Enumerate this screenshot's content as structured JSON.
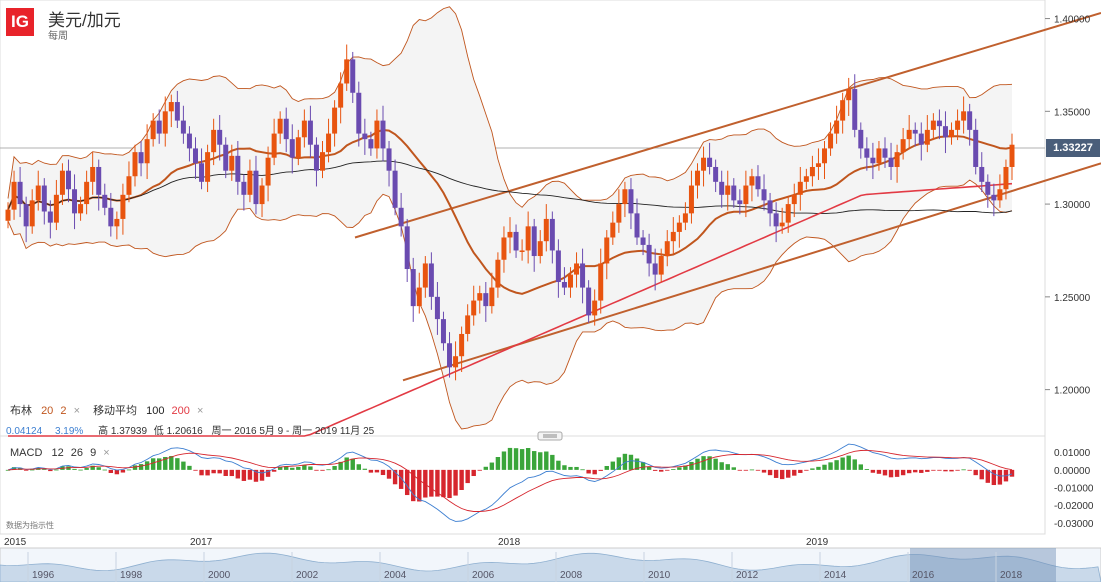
{
  "header": {
    "logo": "IG",
    "title": "美元/加元",
    "subtitle": "每周"
  },
  "price_axis": {
    "ticks": [
      "1.40000",
      "1.35000",
      "1.30000",
      "1.25000",
      "1.20000"
    ],
    "current": "1.33227"
  },
  "indicators": {
    "boll_label": "布林",
    "boll_p1": "20",
    "boll_p2": "2",
    "close1": "×",
    "ma_label": "移动平均",
    "ma_p1": "100",
    "ma_p2": "200",
    "close2": "×",
    "change": "0.04124",
    "change_pct": "3.19%",
    "high_label": "高",
    "high_val": "1.37939",
    "low_label": "低",
    "low_val": "1.20616",
    "range_text": "周一 2016 5月 9 - 周一 2019 11月 25"
  },
  "macd": {
    "label": "MACD",
    "p1": "12",
    "p2": "26",
    "p3": "9",
    "close": "×",
    "ticks": [
      "0.01000",
      "0.00000",
      "-0.01000",
      "-0.02000",
      "-0.03000"
    ],
    "note": "数据为指示性"
  },
  "time_axis": {
    "labels": [
      "2015",
      "2017",
      "2018",
      "2019"
    ]
  },
  "navigator": {
    "labels": [
      "1996",
      "1998",
      "2000",
      "2002",
      "2004",
      "2006",
      "2008",
      "2010",
      "2012",
      "2014",
      "2016",
      "2018"
    ]
  },
  "colors": {
    "up": "#e8540f",
    "down": "#6a4bb0",
    "boll": "#c0561e",
    "ma100": "#222222",
    "ma200": "#e23a44",
    "channel": "#c0602e",
    "price_tag": "#4a5e7a",
    "macd_up": "#3aa53a",
    "macd_down": "#d6262e",
    "macd_line": "#3d7fd1",
    "signal_line": "#d6262e"
  },
  "chart_data": {
    "type": "candlestick",
    "title": "美元/加元",
    "period": "每周",
    "ylim": [
      1.175,
      1.41
    ],
    "x_labels": [
      "2015",
      "2017",
      "2018",
      "2019"
    ],
    "last": 1.33227,
    "high": 1.37939,
    "low": 1.20616,
    "indicators": [
      "Bollinger(20,2)",
      "MA(100)",
      "MA(200)",
      "MACD(12,26,9)"
    ],
    "closes": [
      1.297,
      1.312,
      1.3,
      1.288,
      1.302,
      1.31,
      1.296,
      1.29,
      1.305,
      1.318,
      1.308,
      1.295,
      1.3,
      1.312,
      1.32,
      1.305,
      1.298,
      1.288,
      1.292,
      1.305,
      1.315,
      1.328,
      1.322,
      1.335,
      1.345,
      1.338,
      1.35,
      1.355,
      1.345,
      1.338,
      1.33,
      1.322,
      1.312,
      1.328,
      1.34,
      1.332,
      1.318,
      1.326,
      1.312,
      1.305,
      1.318,
      1.3,
      1.31,
      1.325,
      1.338,
      1.346,
      1.335,
      1.325,
      1.336,
      1.345,
      1.332,
      1.318,
      1.328,
      1.338,
      1.352,
      1.365,
      1.378,
      1.36,
      1.338,
      1.335,
      1.33,
      1.345,
      1.33,
      1.318,
      1.298,
      1.288,
      1.265,
      1.245,
      1.255,
      1.268,
      1.25,
      1.238,
      1.225,
      1.212,
      1.218,
      1.23,
      1.24,
      1.248,
      1.252,
      1.245,
      1.255,
      1.27,
      1.282,
      1.285,
      1.275,
      1.275,
      1.288,
      1.272,
      1.28,
      1.292,
      1.275,
      1.258,
      1.255,
      1.262,
      1.268,
      1.255,
      1.24,
      1.248,
      1.268,
      1.282,
      1.29,
      1.3,
      1.308,
      1.295,
      1.282,
      1.278,
      1.268,
      1.262,
      1.272,
      1.28,
      1.285,
      1.29,
      1.295,
      1.31,
      1.318,
      1.325,
      1.32,
      1.312,
      1.305,
      1.31,
      1.302,
      1.3,
      1.31,
      1.315,
      1.308,
      1.302,
      1.295,
      1.288,
      1.29,
      1.3,
      1.305,
      1.312,
      1.315,
      1.32,
      1.322,
      1.33,
      1.338,
      1.345,
      1.356,
      1.362,
      1.34,
      1.33,
      1.325,
      1.322,
      1.33,
      1.325,
      1.32,
      1.328,
      1.335,
      1.34,
      1.338,
      1.332,
      1.34,
      1.345,
      1.342,
      1.336,
      1.34,
      1.345,
      1.35,
      1.34,
      1.32,
      1.312,
      1.305,
      1.302,
      1.308,
      1.32,
      1.332
    ]
  }
}
